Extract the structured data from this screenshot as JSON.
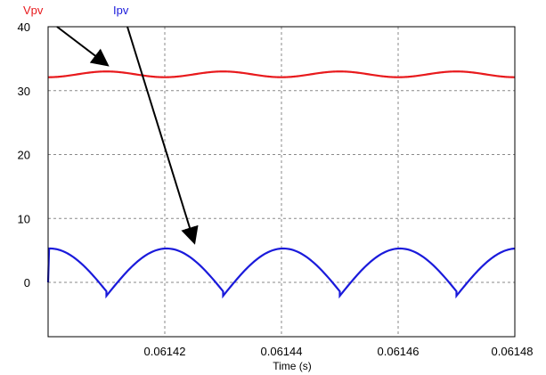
{
  "chart_data": {
    "type": "line",
    "xlabel": "Time (s)",
    "ylabel": "",
    "xlim": [
      0.0614,
      0.06148
    ],
    "ylim": [
      -8.5,
      40
    ],
    "x_ticks": [
      0.06142,
      0.06144,
      0.06146,
      0.06148
    ],
    "x_tick_labels": [
      "0.06142",
      "0.06144",
      "0.06146",
      "0.06148"
    ],
    "x_grid": [
      0.06142,
      0.06144,
      0.06146,
      0.06148
    ],
    "y_ticks": [
      0,
      10,
      20,
      30,
      40
    ],
    "y_tick_labels": [
      "0",
      "10",
      "20",
      "30",
      "40"
    ],
    "grid": true,
    "grid_style": "dashed",
    "series": [
      {
        "name": "Vpv",
        "color": "#e8191c",
        "shape": "ripple",
        "period": 2e-05,
        "first_peak": 0.06141,
        "mean": 32.5,
        "min": 32.1,
        "max": 33.0
      },
      {
        "name": "Ipv",
        "color": "#1a1adb",
        "shape": "sawtooth-arc",
        "period": 2e-05,
        "first_drop": 0.06141,
        "peak": 5.3,
        "trough": -2.1,
        "start": 0.0
      }
    ],
    "annotations": [
      {
        "text": "Vpv",
        "color": "#e8191c",
        "arrow_target": {
          "x": 0.06141,
          "y": 33
        }
      },
      {
        "text": "Ipv",
        "color": "#1a1adb",
        "arrow_target": {
          "x": 0.061425,
          "y": 5.3
        }
      }
    ]
  }
}
